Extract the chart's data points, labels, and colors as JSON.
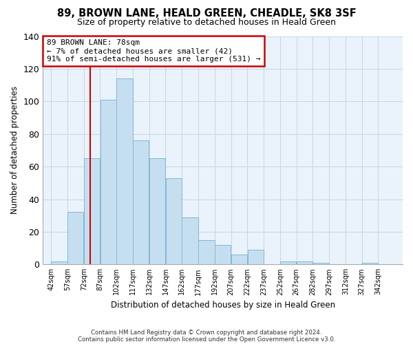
{
  "title": "89, BROWN LANE, HEALD GREEN, CHEADLE, SK8 3SF",
  "subtitle": "Size of property relative to detached houses in Heald Green",
  "xlabel": "Distribution of detached houses by size in Heald Green",
  "ylabel": "Number of detached properties",
  "footnote1": "Contains HM Land Registry data © Crown copyright and database right 2024.",
  "footnote2": "Contains public sector information licensed under the Open Government Licence v3.0.",
  "bar_edges": [
    42,
    57,
    72,
    87,
    102,
    117,
    132,
    147,
    162,
    177,
    192,
    207,
    222,
    237,
    252,
    267,
    282,
    297,
    312,
    327,
    342
  ],
  "bar_heights": [
    2,
    32,
    65,
    101,
    114,
    76,
    65,
    53,
    29,
    15,
    12,
    6,
    9,
    0,
    2,
    2,
    1,
    0,
    0,
    1
  ],
  "bar_color": "#c6dff0",
  "bar_edge_color": "#7fb8d8",
  "property_line_x": 78,
  "property_line_color": "#cc0000",
  "annotation_text": "89 BROWN LANE: 78sqm\n← 7% of detached houses are smaller (42)\n91% of semi-detached houses are larger (531) →",
  "annotation_box_color": "#ffffff",
  "annotation_box_edge_color": "#cc0000",
  "ylim": [
    0,
    140
  ],
  "yticks": [
    0,
    20,
    40,
    60,
    80,
    100,
    120,
    140
  ],
  "background_color": "#ffffff",
  "grid_color": "#c8d8e8",
  "grid_alpha": 1.0
}
